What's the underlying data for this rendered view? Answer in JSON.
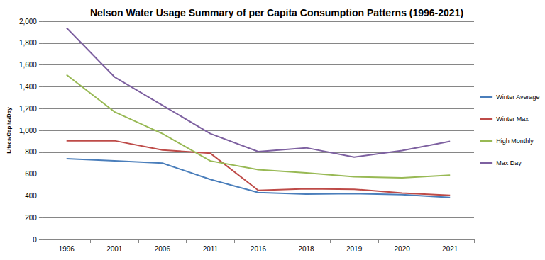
{
  "chart_data": {
    "type": "line",
    "title": "Nelson Water Usage Summary of per Capita Consumption Patterns (1996-2021)",
    "y_label": "Litres/Capita/Day",
    "categories": [
      "1996",
      "2001",
      "2006",
      "2011",
      "2016",
      "2018",
      "2019",
      "2020",
      "2021"
    ],
    "series": [
      {
        "name": "Winter Average",
        "color": "#4a7ebb",
        "values": [
          740,
          720,
          700,
          550,
          430,
          415,
          420,
          410,
          385
        ]
      },
      {
        "name": "Winter Max",
        "color": "#be4b48",
        "values": [
          905,
          905,
          820,
          790,
          450,
          465,
          460,
          425,
          405
        ]
      },
      {
        "name": "High Monthly",
        "color": "#98b954",
        "values": [
          1510,
          1170,
          970,
          720,
          640,
          610,
          575,
          565,
          590
        ]
      },
      {
        "name": "Max Day",
        "color": "#7d60a0",
        "values": [
          1940,
          1490,
          1230,
          970,
          805,
          840,
          755,
          815,
          900
        ]
      }
    ],
    "ylim": [
      0,
      2000
    ],
    "yticks": [
      0,
      200,
      400,
      600,
      800,
      1000,
      1200,
      1400,
      1600,
      1800,
      2000
    ],
    "grid": true,
    "legend": "right"
  }
}
